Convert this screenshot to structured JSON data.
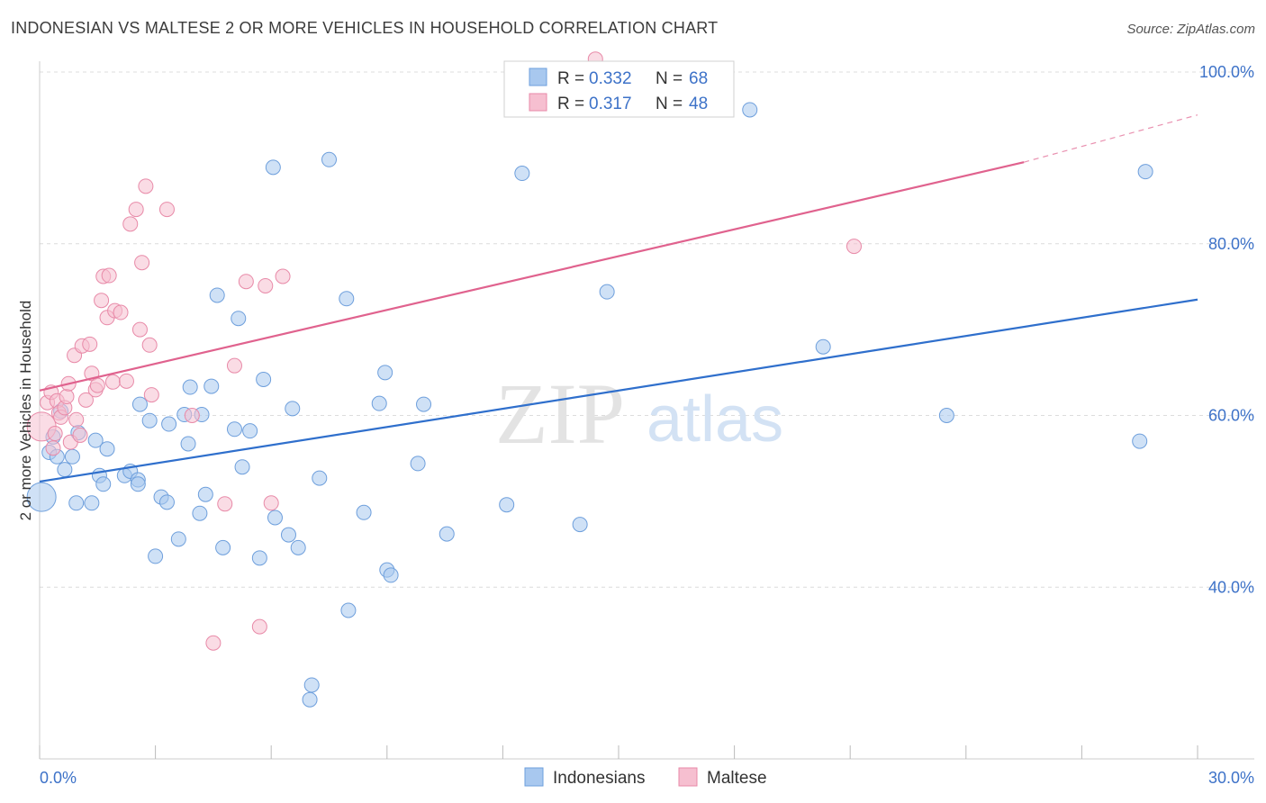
{
  "chart_data": {
    "type": "scatter",
    "title": "INDONESIAN VS MALTESE 2 OR MORE VEHICLES IN HOUSEHOLD CORRELATION CHART",
    "source": "Source: ZipAtlas.com",
    "xlabel": "",
    "ylabel": "2 or more Vehicles in Household",
    "xlim": [
      0,
      30
    ],
    "ylim": [
      20,
      101
    ],
    "x_tick_labels": [
      {
        "value": 0,
        "label": "0.0%"
      },
      {
        "value": 30,
        "label": "30.0%"
      }
    ],
    "y_tick_labels": [
      {
        "value": 40,
        "label": "40.0%"
      },
      {
        "value": 60,
        "label": "60.0%"
      },
      {
        "value": 80,
        "label": "80.0%"
      },
      {
        "value": 100,
        "label": "100.0%"
      }
    ],
    "grid": true,
    "watermark": "ZIPatlas",
    "legend": {
      "position": "top-center",
      "entries": [
        {
          "series": "Indonesians",
          "r_label": "R =",
          "r_value": "0.332",
          "n_label": "N =",
          "n_value": "68"
        },
        {
          "series": "Maltese",
          "r_label": "R =",
          "r_value": "0.317",
          "n_label": "N =",
          "n_value": "48"
        }
      ]
    },
    "series": [
      {
        "name": "Indonesians",
        "color": "#a8c8ef",
        "stroke": "#6e9fdc",
        "trend": {
          "x": [
            0,
            30
          ],
          "y": [
            52.3,
            73.5
          ],
          "color": "#2f6fcc"
        },
        "points": [
          [
            0.05,
            50.5
          ],
          [
            0.25,
            55.7
          ],
          [
            0.35,
            57.5
          ],
          [
            0.45,
            55.2
          ],
          [
            0.55,
            60.5
          ],
          [
            0.65,
            53.7
          ],
          [
            0.85,
            55.2
          ],
          [
            0.95,
            49.8
          ],
          [
            1.35,
            49.8
          ],
          [
            1.45,
            57.1
          ],
          [
            1.55,
            53.0
          ],
          [
            1.65,
            52.0
          ],
          [
            1.75,
            56.1
          ],
          [
            2.2,
            53.0
          ],
          [
            2.35,
            53.5
          ],
          [
            2.55,
            52.5
          ],
          [
            2.6,
            61.3
          ],
          [
            2.85,
            59.4
          ],
          [
            3.0,
            43.6
          ],
          [
            3.15,
            50.5
          ],
          [
            3.3,
            49.9
          ],
          [
            3.35,
            59.0
          ],
          [
            3.6,
            45.6
          ],
          [
            3.75,
            60.1
          ],
          [
            3.85,
            56.7
          ],
          [
            3.9,
            63.3
          ],
          [
            4.15,
            48.6
          ],
          [
            4.2,
            60.1
          ],
          [
            4.3,
            50.8
          ],
          [
            4.45,
            63.4
          ],
          [
            4.6,
            74.0
          ],
          [
            4.75,
            44.6
          ],
          [
            5.05,
            58.4
          ],
          [
            5.15,
            71.3
          ],
          [
            5.25,
            54.0
          ],
          [
            5.45,
            58.2
          ],
          [
            5.7,
            43.4
          ],
          [
            5.8,
            64.2
          ],
          [
            6.05,
            88.9
          ],
          [
            6.1,
            48.1
          ],
          [
            6.45,
            46.1
          ],
          [
            6.55,
            60.8
          ],
          [
            6.7,
            44.6
          ],
          [
            7.0,
            26.9
          ],
          [
            7.05,
            28.6
          ],
          [
            7.25,
            52.7
          ],
          [
            7.5,
            89.8
          ],
          [
            7.95,
            73.6
          ],
          [
            8.0,
            37.3
          ],
          [
            8.4,
            48.7
          ],
          [
            8.8,
            61.4
          ],
          [
            8.95,
            65.0
          ],
          [
            9.0,
            42.0
          ],
          [
            9.1,
            41.4
          ],
          [
            9.8,
            54.4
          ],
          [
            9.95,
            61.3
          ],
          [
            10.55,
            46.2
          ],
          [
            12.1,
            49.6
          ],
          [
            12.5,
            88.2
          ],
          [
            14.0,
            47.3
          ],
          [
            14.7,
            74.4
          ],
          [
            18.4,
            95.6
          ],
          [
            20.3,
            68.0
          ],
          [
            23.5,
            60.0
          ],
          [
            28.5,
            57.0
          ],
          [
            28.65,
            88.4
          ],
          [
            2.55,
            52.0
          ],
          [
            1.0,
            58.0
          ]
        ]
      },
      {
        "name": "Maltese",
        "color": "#f6bfd0",
        "stroke": "#e88aa8",
        "trend": {
          "x": [
            0,
            25.5
          ],
          "y": [
            62.9,
            89.5
          ],
          "color": "#e0628e",
          "dashed_extension_to": [
            30,
            95.0
          ]
        },
        "points": [
          [
            0.05,
            58.7
          ],
          [
            0.2,
            61.5
          ],
          [
            0.3,
            62.7
          ],
          [
            0.4,
            57.9
          ],
          [
            0.45,
            61.7
          ],
          [
            0.5,
            60.3
          ],
          [
            0.55,
            59.8
          ],
          [
            0.65,
            60.9
          ],
          [
            0.7,
            62.2
          ],
          [
            0.75,
            63.7
          ],
          [
            0.8,
            56.9
          ],
          [
            0.9,
            67.0
          ],
          [
            0.95,
            59.5
          ],
          [
            1.05,
            57.7
          ],
          [
            1.1,
            68.1
          ],
          [
            1.2,
            61.8
          ],
          [
            1.3,
            68.3
          ],
          [
            1.35,
            64.9
          ],
          [
            1.45,
            63.0
          ],
          [
            1.5,
            63.5
          ],
          [
            1.6,
            73.4
          ],
          [
            1.65,
            76.2
          ],
          [
            1.75,
            71.4
          ],
          [
            1.8,
            76.3
          ],
          [
            1.9,
            63.9
          ],
          [
            1.95,
            72.2
          ],
          [
            2.1,
            72.0
          ],
          [
            2.25,
            64.0
          ],
          [
            2.35,
            82.3
          ],
          [
            2.5,
            84.0
          ],
          [
            2.6,
            70.0
          ],
          [
            2.65,
            77.8
          ],
          [
            2.75,
            86.7
          ],
          [
            2.85,
            68.2
          ],
          [
            2.9,
            62.4
          ],
          [
            3.3,
            84.0
          ],
          [
            3.95,
            60.0
          ],
          [
            4.5,
            33.5
          ],
          [
            4.8,
            49.7
          ],
          [
            5.05,
            65.8
          ],
          [
            5.35,
            75.6
          ],
          [
            5.7,
            35.4
          ],
          [
            5.85,
            75.1
          ],
          [
            6.0,
            49.8
          ],
          [
            6.3,
            76.2
          ],
          [
            14.4,
            101.5
          ],
          [
            21.1,
            79.7
          ],
          [
            0.35,
            56.2
          ]
        ]
      }
    ],
    "bottom_legend": [
      "Indonesians",
      "Maltese"
    ]
  }
}
